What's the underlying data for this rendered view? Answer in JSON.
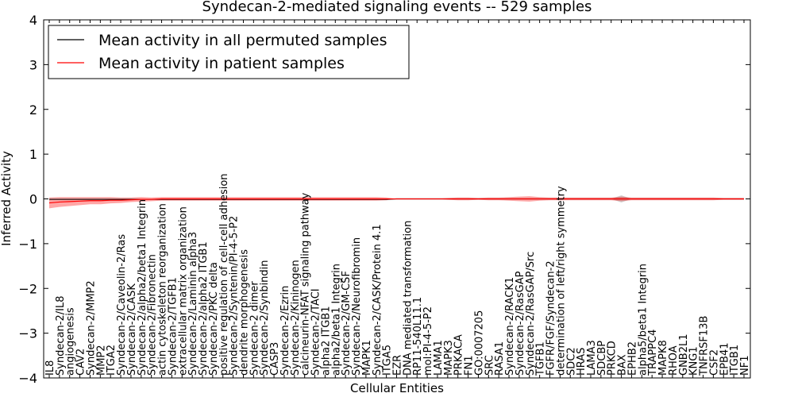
{
  "chart_data": {
    "type": "line",
    "title": "Syndecan-2-mediated signaling events -- 529 samples",
    "xlabel": "Cellular Entities",
    "ylabel": "Inferred Activity",
    "ylim": [
      -4,
      4
    ],
    "yticks": [
      -4,
      -3,
      -2,
      -1,
      0,
      1,
      2,
      3,
      4
    ],
    "ytick_labels": [
      "−4",
      "−3",
      "−2",
      "−1",
      "0",
      "1",
      "2",
      "3",
      "4"
    ],
    "categories": [
      "IL8",
      "Syndecan-2/IL8",
      "angiogenesis",
      "CAV2",
      "Syndecan-2/MMP2",
      "MMP2",
      "ITGA2",
      "Syndecan-2/Caveolin-2/Ras",
      "Syndecan-2/CASK",
      "Syndecan-2/alpha2/beta1 Integrin",
      "Syndecan-2/Fibronectin",
      "actin cytoskeleton reorganization",
      "Syndecan-2/TGFB1",
      "extracellular matrix organization",
      "Syndecan-2/Laminin alpha3",
      "Syndecan-2/alpha2 ITGB1",
      "Syndecan-2/PKC delta",
      "positive regulation of cell-cell adhesion",
      "Syndecan-2/Syntenin/PI-4-5-P2",
      "dendrite morphogenesis",
      "Syndecan-2 dimer",
      "Syndecan-2/Synbindin",
      "CASP3",
      "Syndecan-2/Ezrin",
      "Syndecan-2/Kininogen",
      "calcineurin-NFAT signaling pathway",
      "Syndecan-2/TACI",
      "alpha2 ITGB1",
      "alpha2/beta1 Integrin",
      "Syndecan-2/GM-CSF",
      "Syndecan-2/Neurofibromin",
      "MAPK1",
      "Syndecan-2/CASK/Protein 4.1",
      "ITGA5",
      "EZR",
      "DNA mediated transformation",
      "RP11-540L11.1",
      "mol:PI-4-5-P2",
      "LAMA1",
      "MAPK3",
      "PRKACA",
      "FN1",
      "GO:0007205",
      "SRC",
      "RASA1",
      "Syndecan-2/RACK1",
      "Syndecan-2/RasGAP",
      "Syndecan-2/RasGAP/Src",
      "TGFB1",
      "FGFR/FGF/Syndecan-2",
      "determination of left/right symmetry",
      "SDC2",
      "HRAS",
      "LAMA3",
      "SDCBP",
      "PRKCD",
      "BAX",
      "EPHB2",
      "alpha5/beta1 Integrin",
      "TRAPPC4",
      "MAPK8",
      "RHOA",
      "GNB2L1",
      "KNG1",
      "TNFRSF13B",
      "CSF2",
      "EPB41",
      "ITGB1",
      "NF1"
    ],
    "series": [
      {
        "name": "Mean activity in all permuted samples",
        "color": "#000000",
        "values": [
          -0.01,
          -0.01,
          -0.01,
          -0.01,
          -0.01,
          -0.01,
          -0.01,
          -0.01,
          -0.01,
          -0.01,
          -0.01,
          -0.01,
          -0.01,
          -0.01,
          -0.01,
          -0.01,
          -0.01,
          -0.01,
          -0.01,
          -0.01,
          -0.01,
          -0.01,
          -0.01,
          -0.01,
          -0.01,
          -0.01,
          -0.01,
          -0.01,
          -0.01,
          -0.01,
          -0.01,
          -0.01,
          -0.01,
          -0.01,
          0.0,
          0.0,
          0.0,
          0.0,
          0.0,
          0.0,
          0.0,
          0.0,
          0.0,
          0.0,
          0.0,
          0.0,
          0.0,
          0.0,
          0.0,
          0.0,
          0.0,
          0.0,
          0.0,
          0.0,
          0.0,
          0.0,
          0.0,
          0.0,
          0.0,
          0.0,
          0.0,
          0.0,
          0.0,
          0.0,
          0.0,
          0.0,
          0.0,
          0.0,
          0.0
        ]
      },
      {
        "name": "Mean activity in patient samples",
        "color": "#ff0000",
        "band_color": "#ff0000",
        "values": [
          -0.09,
          -0.07,
          -0.06,
          -0.05,
          -0.04,
          -0.04,
          -0.03,
          -0.03,
          -0.02,
          -0.01,
          -0.01,
          0.0,
          0.0,
          0.0,
          0.0,
          0.0,
          0.0,
          0.0,
          0.0,
          0.0,
          0.0,
          0.0,
          0.0,
          0.0,
          0.0,
          0.0,
          0.0,
          0.0,
          0.0,
          0.0,
          0.0,
          0.0,
          0.0,
          0.0,
          0.0,
          0.0,
          0.0,
          0.0,
          0.0,
          0.0,
          0.0,
          0.0,
          0.0,
          0.0,
          0.0,
          0.0,
          0.0,
          0.0,
          0.0,
          0.0,
          0.0,
          0.0,
          0.0,
          0.0,
          0.0,
          0.0,
          0.0,
          0.0,
          0.0,
          0.0,
          0.0,
          0.0,
          0.0,
          0.0,
          0.0,
          0.0,
          0.0,
          0.0,
          0.0
        ],
        "band_halfwidth": [
          0.12,
          0.11,
          0.1,
          0.09,
          0.08,
          0.08,
          0.07,
          0.06,
          0.05,
          0.05,
          0.04,
          0.04,
          0.04,
          0.04,
          0.04,
          0.04,
          0.04,
          0.04,
          0.04,
          0.04,
          0.04,
          0.04,
          0.04,
          0.04,
          0.04,
          0.04,
          0.04,
          0.04,
          0.04,
          0.04,
          0.04,
          0.04,
          0.04,
          0.03,
          0.0,
          0.0,
          0.0,
          0.0,
          0.0,
          0.02,
          0.03,
          0.03,
          0.02,
          0.03,
          0.03,
          0.04,
          0.05,
          0.06,
          0.04,
          0.03,
          0.03,
          0.03,
          0.03,
          0.03,
          0.03,
          0.03,
          0.05,
          0.03,
          0.03,
          0.03,
          0.03,
          0.03,
          0.03,
          0.03,
          0.03,
          0.03,
          0.02,
          0.02,
          0.02
        ]
      }
    ],
    "extra_band": {
      "color": "#aaaaaa",
      "category_index": 56,
      "halfwidth": 0.08
    },
    "legend": {
      "position": "top-left",
      "entries": [
        "Mean activity in all permuted samples",
        "Mean activity in patient samples"
      ]
    },
    "grid": false
  }
}
